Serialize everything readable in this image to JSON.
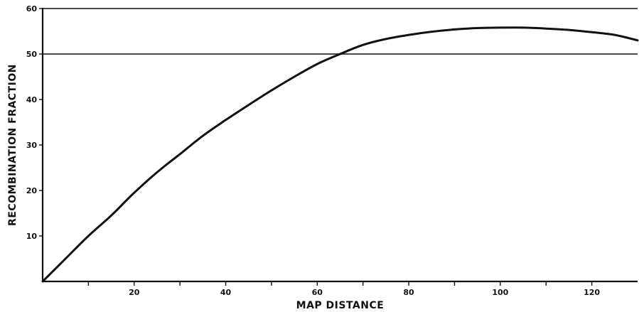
{
  "chart_data": {
    "type": "line",
    "title": "",
    "xlabel": "MAP DISTANCE",
    "ylabel": "RECOMBINATION FRACTION",
    "xlim": [
      0,
      130
    ],
    "ylim": [
      0,
      60
    ],
    "x_ticks_major": [
      20,
      40,
      60,
      80,
      100,
      120
    ],
    "x_ticks_minor": [
      10,
      30,
      50,
      70,
      90,
      110
    ],
    "x_tick_labels": [
      "20",
      "40",
      "60",
      "80",
      "100",
      "120"
    ],
    "y_ticks": [
      10,
      20,
      30,
      40,
      50,
      60
    ],
    "y_tick_labels": [
      "10",
      "20",
      "30",
      "40",
      "50",
      "60"
    ],
    "reference_lines_y": [
      50,
      60
    ],
    "grid": false,
    "series": [
      {
        "x": [
          0,
          5,
          10,
          15,
          20,
          25,
          30,
          35,
          40,
          45,
          50,
          55,
          60,
          65,
          70,
          75,
          80,
          85,
          90,
          95,
          100,
          105,
          110,
          115,
          120,
          125,
          130
        ],
        "values": [
          0,
          5,
          10,
          14.5,
          19.5,
          24,
          28,
          32,
          35.5,
          38.8,
          42,
          45,
          47.8,
          50,
          52,
          53.3,
          54.2,
          54.9,
          55.4,
          55.7,
          55.8,
          55.8,
          55.6,
          55.3,
          54.8,
          54.2,
          53
        ]
      }
    ]
  }
}
